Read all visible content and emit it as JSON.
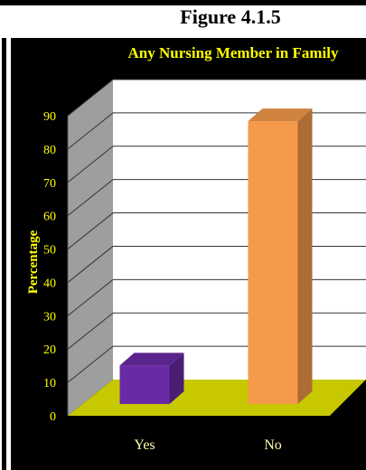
{
  "figure_label": "Figure 4.1.5",
  "colors": {
    "background": "#000000",
    "floor": "#c8c800",
    "wall_left": "#9e9e9e",
    "wall_back": "#ffffff",
    "text_title": "#ffff00",
    "tick_text": "#ffff00",
    "category_text": "#ffffaa",
    "bar_yes": "#6a2aa6",
    "bar_no": "#f59a4a"
  },
  "chart_data": {
    "type": "bar",
    "title": "Any Nursing Member in Family",
    "ylabel": "Percentage",
    "xlabel": "",
    "categories": [
      "Yes",
      "No"
    ],
    "values": [
      12,
      88
    ],
    "ylim": [
      0,
      90
    ],
    "yticks": [
      0,
      10,
      20,
      30,
      40,
      50,
      60,
      70,
      80,
      90
    ],
    "grid": true,
    "legend": "none"
  }
}
